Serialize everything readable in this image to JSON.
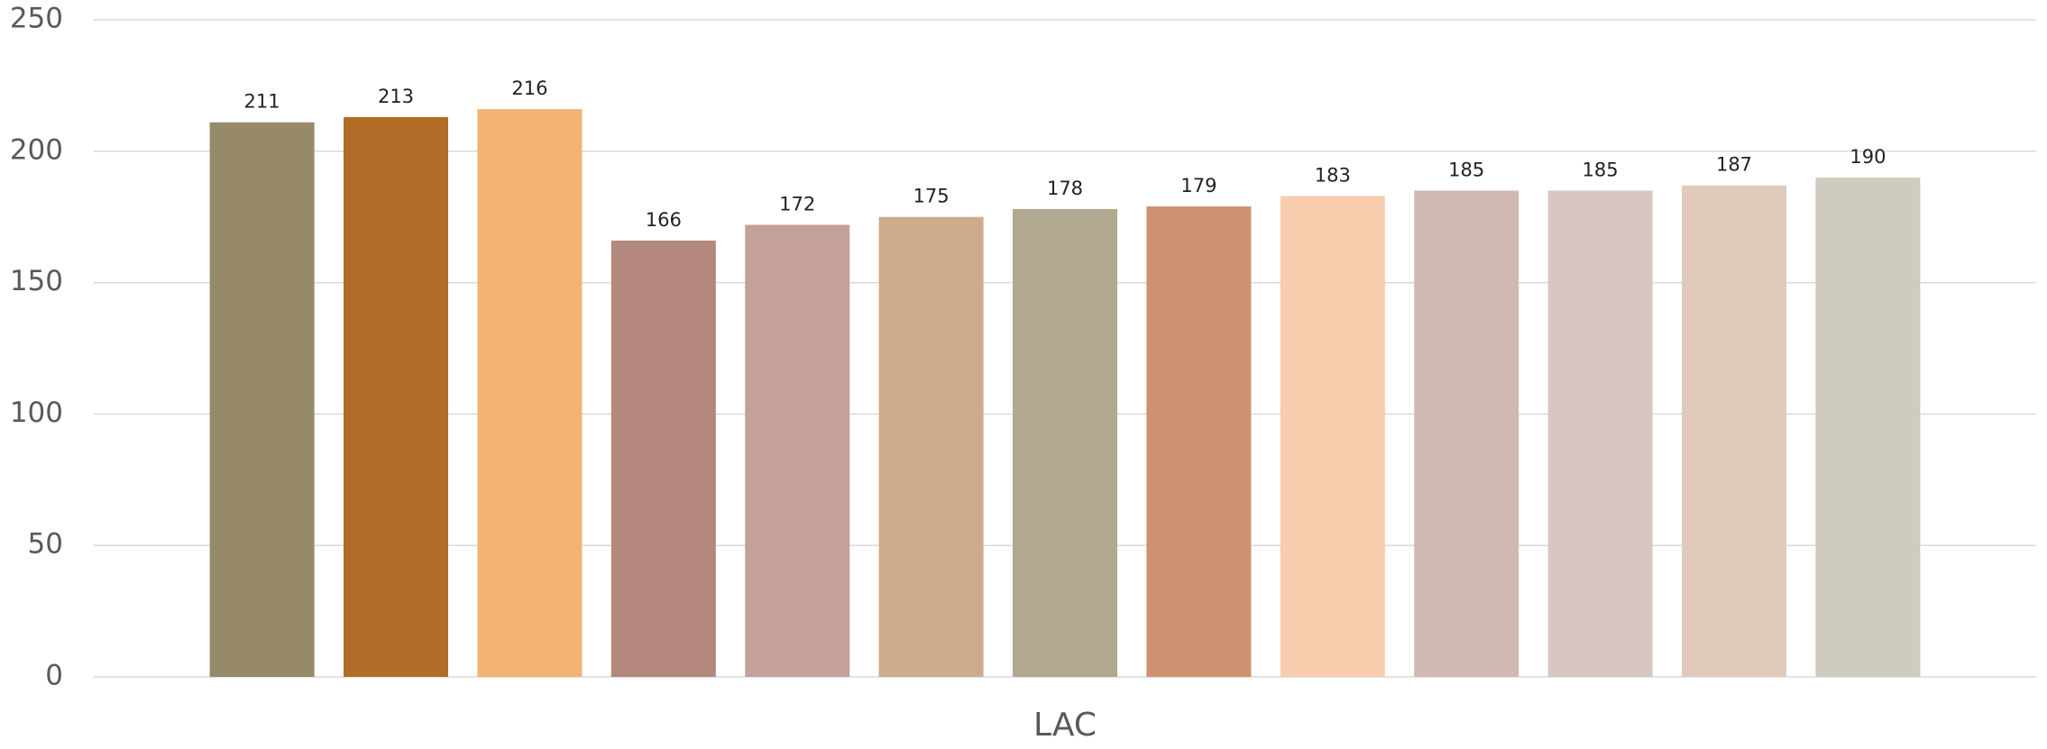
{
  "chart_data": {
    "type": "bar",
    "categories": [
      "LAC"
    ],
    "series": [
      {
        "color": "#978a6a",
        "values": [
          211
        ]
      },
      {
        "color": "#b36c27",
        "values": [
          213
        ]
      },
      {
        "color": "#f2b272",
        "values": [
          216
        ]
      },
      {
        "color": "#b4887c",
        "values": [
          166
        ]
      },
      {
        "color": "#c4a09a",
        "values": [
          172
        ]
      },
      {
        "color": "#cdab8c",
        "values": [
          175
        ]
      },
      {
        "color": "#b0a88f",
        "values": [
          178
        ]
      },
      {
        "color": "#cd9270",
        "values": [
          179
        ]
      },
      {
        "color": "#f7cdae",
        "values": [
          183
        ]
      },
      {
        "color": "#d2b8b2",
        "values": [
          185
        ]
      },
      {
        "color": "#d9c6c3",
        "values": [
          185
        ]
      },
      {
        "color": "#e0cabb",
        "values": [
          187
        ]
      },
      {
        "color": "#cfcbbe",
        "values": [
          190
        ]
      }
    ],
    "ylim": [
      0,
      250
    ],
    "yticks": [
      0,
      50,
      100,
      150,
      200,
      250
    ],
    "grid": true
  }
}
